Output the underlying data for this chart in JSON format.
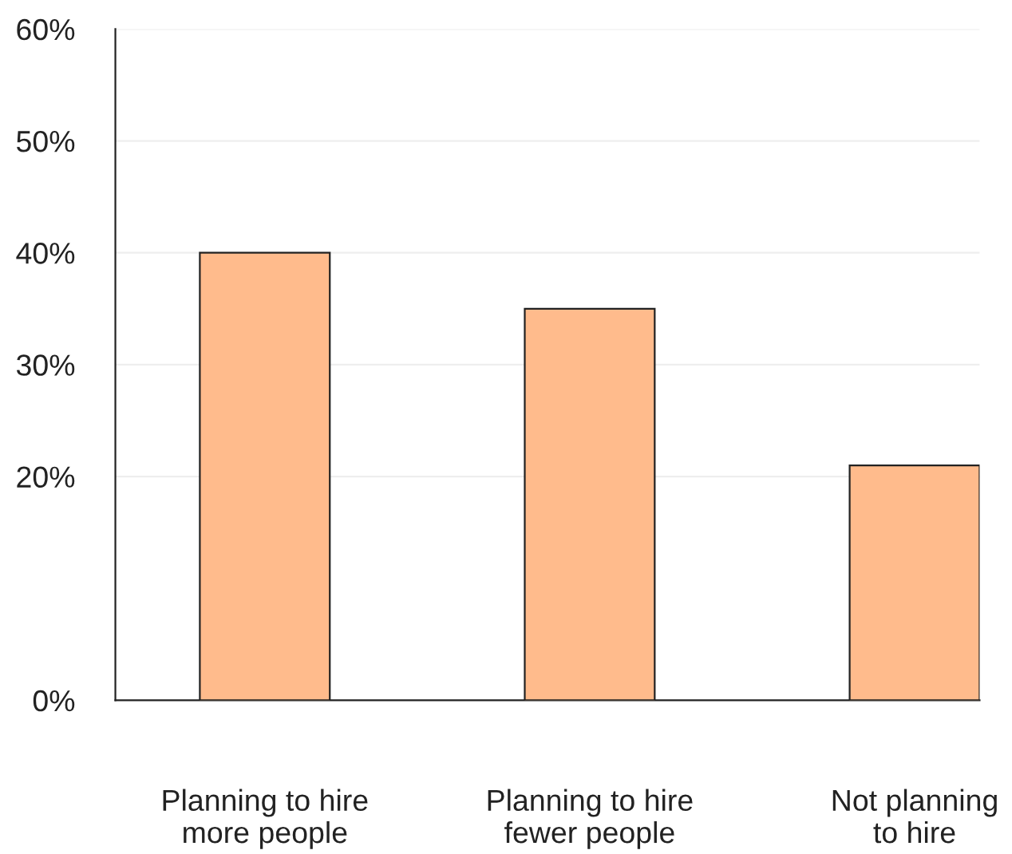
{
  "chart_data": {
    "type": "bar",
    "categories": [
      "Planning to hire\nmore people",
      "Planning to hire\nfewer people",
      "Not planning\nto hire"
    ],
    "values": [
      40,
      35,
      21
    ],
    "color": "#ffbb8c",
    "ylim": [
      0,
      60
    ],
    "yticks": [
      {
        "value": 0,
        "label": "0%"
      },
      {
        "value": 20,
        "label": "20%"
      },
      {
        "value": 30,
        "label": "30%"
      },
      {
        "value": 40,
        "label": "40%"
      },
      {
        "value": 50,
        "label": "50%"
      },
      {
        "value": 60,
        "label": "60%"
      }
    ],
    "grid": "y"
  }
}
